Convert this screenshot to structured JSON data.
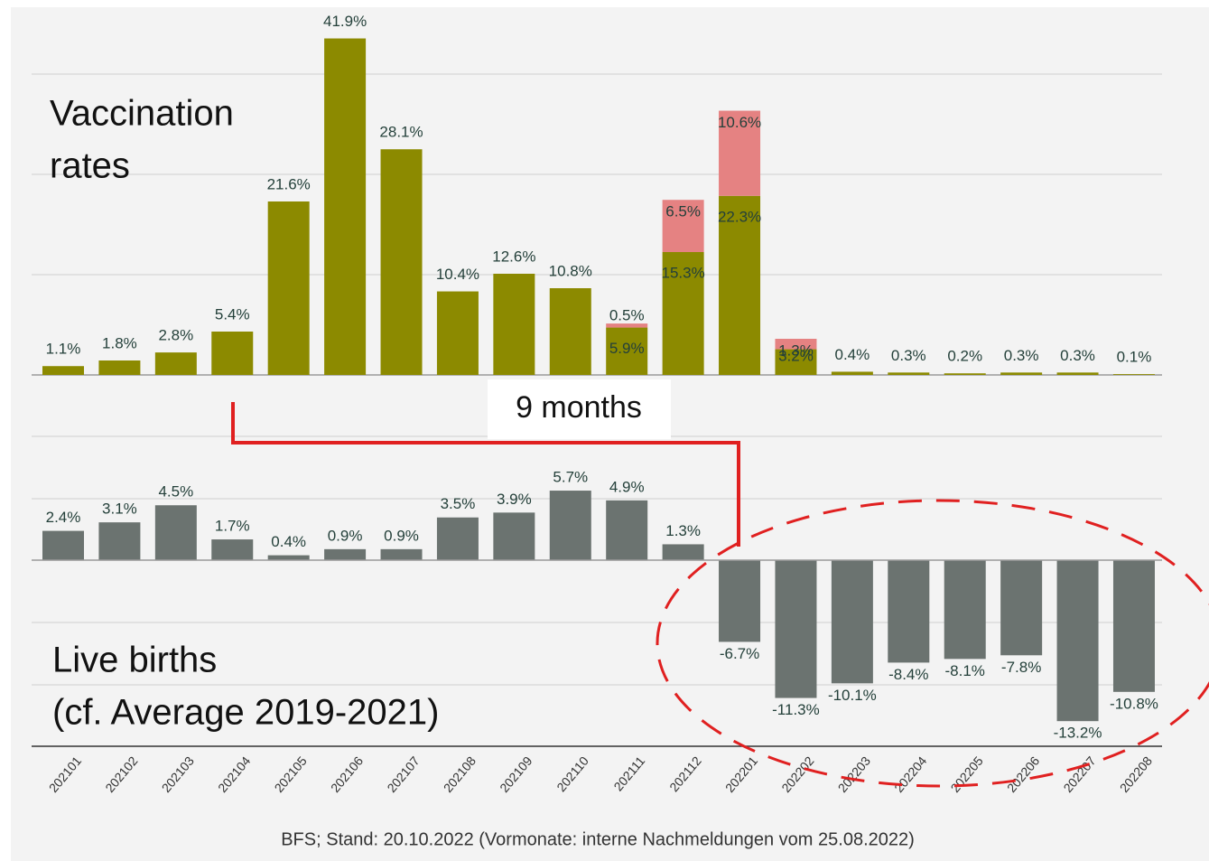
{
  "chart_data": [
    {
      "type": "stacked_bar",
      "title_lines": [
        "Vaccination",
        "rates"
      ],
      "categories": [
        "202101",
        "202102",
        "202103",
        "202104",
        "202105",
        "202106",
        "202107",
        "202108",
        "202109",
        "202110",
        "202111",
        "202112",
        "202201",
        "202202",
        "202203",
        "202204",
        "202205",
        "202206",
        "202207",
        "202208"
      ],
      "series": [
        {
          "color": "#8c8a00",
          "values": [
            1.1,
            1.8,
            2.8,
            5.4,
            21.6,
            41.9,
            28.1,
            10.4,
            12.6,
            10.8,
            5.9,
            15.3,
            22.3,
            3.2,
            0.4,
            0.3,
            0.2,
            0.3,
            0.3,
            0.1
          ],
          "value_labels": [
            "1.1%",
            "1.8%",
            "2.8%",
            "5.4%",
            "21.6%",
            "41.9%",
            "28.1%",
            "10.4%",
            "12.6%",
            "10.8%",
            "5.9%",
            "15.3%",
            "22.3%",
            "3.2%",
            "0.4%",
            "0.3%",
            "0.2%",
            "0.3%",
            "0.3%",
            "0.1%"
          ]
        },
        {
          "color": "#e58282",
          "values": [
            null,
            null,
            null,
            null,
            null,
            null,
            null,
            null,
            null,
            null,
            0.5,
            6.5,
            10.6,
            1.3,
            null,
            null,
            null,
            null,
            null,
            null
          ],
          "value_labels": [
            null,
            null,
            null,
            null,
            null,
            null,
            null,
            null,
            null,
            null,
            "0.5%",
            "6.5%",
            "10.6%",
            "1.3%",
            null,
            null,
            null,
            null,
            null,
            null
          ]
        }
      ],
      "ylim": [
        0,
        45
      ]
    },
    {
      "type": "bar",
      "title_lines": [
        "Live births",
        "(cf. Average 2019-2021)"
      ],
      "categories": [
        "202101",
        "202102",
        "202103",
        "202104",
        "202105",
        "202106",
        "202107",
        "202108",
        "202109",
        "202110",
        "202111",
        "202112",
        "202201",
        "202202",
        "202203",
        "202204",
        "202205",
        "202206",
        "202207",
        "202208"
      ],
      "values": [
        2.4,
        3.1,
        4.5,
        1.7,
        0.4,
        0.9,
        0.9,
        3.5,
        3.9,
        5.7,
        4.9,
        1.3,
        -6.7,
        -11.3,
        -10.1,
        -8.4,
        -8.1,
        -7.8,
        -13.2,
        -10.8
      ],
      "value_labels": [
        "2.4%",
        "3.1%",
        "4.5%",
        "1.7%",
        "0.4%",
        "0.9%",
        "0.9%",
        "3.5%",
        "3.9%",
        "5.7%",
        "4.9%",
        "1.3%",
        "-6.7%",
        "-11.3%",
        "-10.1%",
        "-8.4%",
        "-8.1%",
        "-7.8%",
        "-13.2%",
        "-10.8%"
      ],
      "color": "#6b7370",
      "ylim": [
        -15,
        11
      ]
    }
  ],
  "annotation": "9 months",
  "source": "BFS; Stand: 20.10.2022 (Vormonate: interne Nachmeldungen vom 25.08.2022)"
}
